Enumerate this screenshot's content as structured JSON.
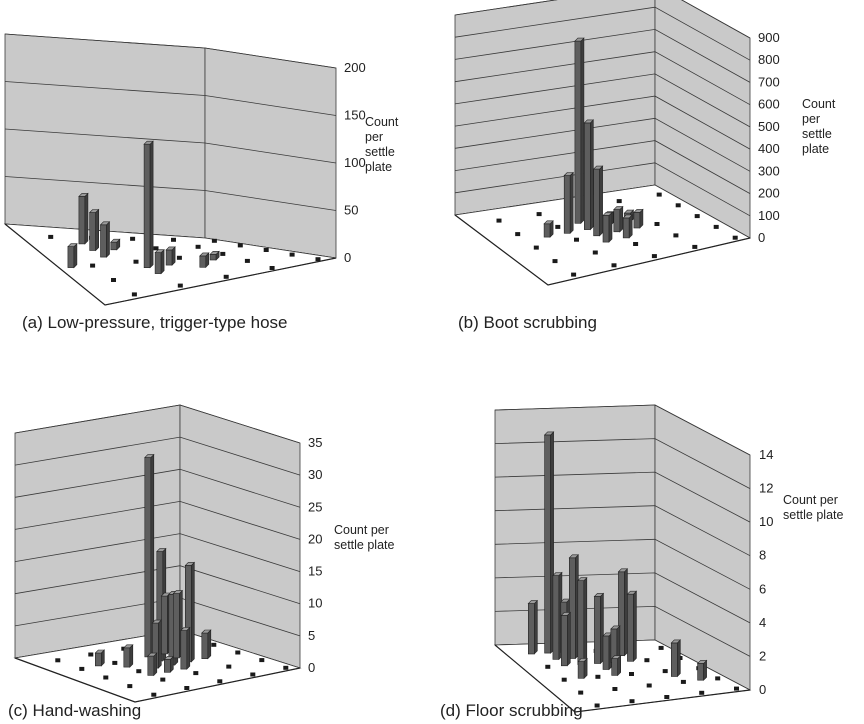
{
  "colors": {
    "wall_fill": "#c9c9c9",
    "floor_fill": "#ffffff",
    "grid_line": "#3a3a3a",
    "bar_front": "#5e5e5e",
    "bar_side": "#3e3e3e",
    "bar_top": "#9a9a9a",
    "floor_marker": "#1a1a1a"
  },
  "chart_data": [
    {
      "type": "bar3d",
      "caption": "(a) Low-pressure, trigger-type hose",
      "ylabel_lines": [
        "Count",
        "per",
        "settle",
        "plate"
      ],
      "zlim": [
        0,
        200
      ],
      "ticks": [
        "0",
        "50",
        "100",
        "150",
        "200"
      ],
      "grid": true,
      "bars": [
        {
          "grid": [
            3,
            6
          ],
          "value": 130
        },
        {
          "grid": [
            2,
            2
          ],
          "value": 50
        },
        {
          "grid": [
            2,
            3
          ],
          "value": 40
        },
        {
          "grid": [
            2,
            4
          ],
          "value": 34
        },
        {
          "grid": [
            0,
            5
          ],
          "value": 22
        },
        {
          "grid": [
            3,
            7
          ],
          "value": 22
        },
        {
          "grid": [
            4,
            6
          ],
          "value": 16
        },
        {
          "grid": [
            3,
            3
          ],
          "value": 8
        },
        {
          "grid": [
            5,
            7
          ],
          "value": 12
        },
        {
          "grid": [
            6,
            6
          ],
          "value": 6
        }
      ]
    },
    {
      "type": "bar3d",
      "caption": "(b) Boot scrubbing",
      "ylabel_lines": [
        "Count",
        "per",
        "settle",
        "plate"
      ],
      "zlim": [
        0,
        900
      ],
      "ticks": [
        "0",
        "100",
        "200",
        "300",
        "400",
        "500",
        "600",
        "700",
        "800",
        "900"
      ],
      "grid": true,
      "bars": [
        {
          "grid": [
            4,
            3
          ],
          "value": 820
        },
        {
          "grid": [
            4,
            4
          ],
          "value": 480
        },
        {
          "grid": [
            4,
            5
          ],
          "value": 300
        },
        {
          "grid": [
            3,
            4
          ],
          "value": 260
        },
        {
          "grid": [
            4,
            6
          ],
          "value": 120
        },
        {
          "grid": [
            5,
            5
          ],
          "value": 100
        },
        {
          "grid": [
            5,
            6
          ],
          "value": 90
        },
        {
          "grid": [
            6,
            5
          ],
          "value": 70
        },
        {
          "grid": [
            2,
            4
          ],
          "value": 60
        },
        {
          "grid": [
            5,
            4
          ],
          "value": 50
        },
        {
          "grid": [
            6,
            4
          ],
          "value": 40
        }
      ]
    },
    {
      "type": "bar3d",
      "caption": "(c) Hand-washing",
      "ylabel_lines": [
        "Count per",
        "settle plate"
      ],
      "zlim": [
        0,
        35
      ],
      "ticks": [
        "0",
        "5",
        "10",
        "15",
        "20",
        "25",
        "30",
        "35"
      ],
      "grid": true,
      "bars": [
        {
          "grid": [
            5,
            3
          ],
          "value": 31
        },
        {
          "grid": [
            5,
            4
          ],
          "value": 17
        },
        {
          "grid": [
            6,
            5
          ],
          "value": 15
        },
        {
          "grid": [
            5,
            5
          ],
          "value": 11
        },
        {
          "grid": [
            6,
            4
          ],
          "value": 10
        },
        {
          "grid": [
            6,
            3
          ],
          "value": 9
        },
        {
          "grid": [
            4,
            5
          ],
          "value": 7
        },
        {
          "grid": [
            5,
            6
          ],
          "value": 6
        },
        {
          "grid": [
            7,
            5
          ],
          "value": 4
        },
        {
          "grid": [
            3,
            4
          ],
          "value": 3
        },
        {
          "grid": [
            2,
            3
          ],
          "value": 2
        },
        {
          "grid": [
            4,
            6
          ],
          "value": 2
        },
        {
          "grid": [
            3,
            6
          ],
          "value": 3
        }
      ]
    },
    {
      "type": "bar3d",
      "caption": "(d) Floor scrubbing",
      "ylabel_lines": [
        "Count per",
        "settle plate"
      ],
      "zlim": [
        0,
        14
      ],
      "ticks": [
        "0",
        "2",
        "4",
        "6",
        "8",
        "10",
        "12",
        "14"
      ],
      "grid": true,
      "bars": [
        {
          "grid": [
            2,
            1
          ],
          "value": 13
        },
        {
          "grid": [
            3,
            2
          ],
          "value": 6
        },
        {
          "grid": [
            2,
            2
          ],
          "value": 5
        },
        {
          "grid": [
            3,
            3
          ],
          "value": 5
        },
        {
          "grid": [
            6,
            2
          ],
          "value": 5
        },
        {
          "grid": [
            6,
            3
          ],
          "value": 4
        },
        {
          "grid": [
            4,
            3
          ],
          "value": 4
        },
        {
          "grid": [
            1,
            1
          ],
          "value": 3
        },
        {
          "grid": [
            3,
            1
          ],
          "value": 3
        },
        {
          "grid": [
            2,
            3
          ],
          "value": 3
        },
        {
          "grid": [
            4,
            4
          ],
          "value": 2
        },
        {
          "grid": [
            5,
            3
          ],
          "value": 2
        },
        {
          "grid": [
            7,
            6
          ],
          "value": 2
        },
        {
          "grid": [
            8,
            7
          ],
          "value": 1
        },
        {
          "grid": [
            4,
            5
          ],
          "value": 1
        },
        {
          "grid": [
            2,
            5
          ],
          "value": 1
        }
      ]
    }
  ]
}
